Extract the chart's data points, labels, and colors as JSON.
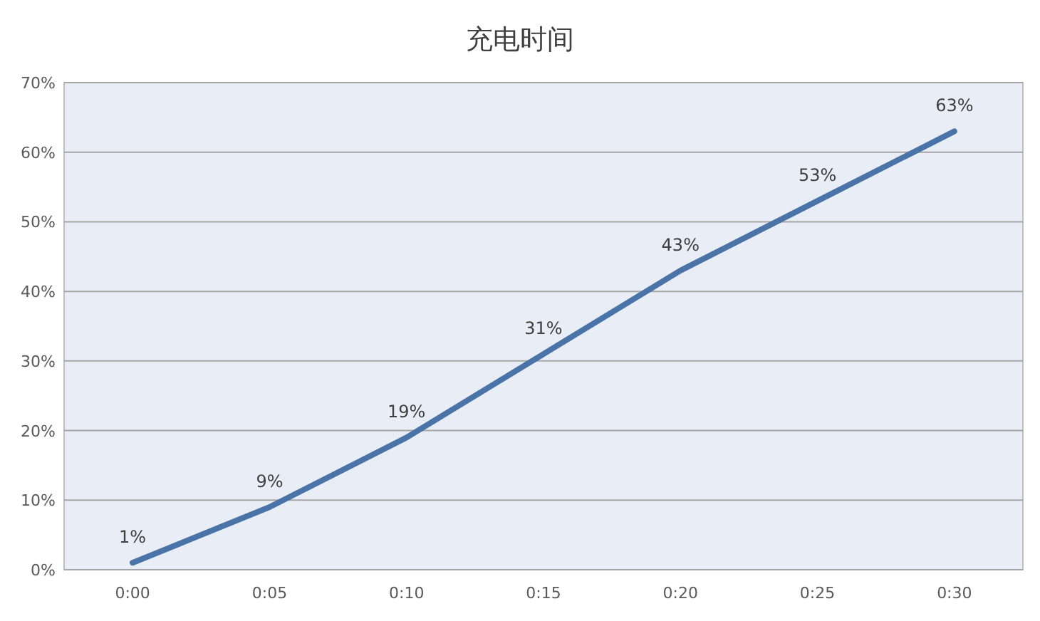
{
  "chart_data": {
    "type": "line",
    "title": "充电时间",
    "categories": [
      "0:00",
      "0:05",
      "0:10",
      "0:15",
      "0:20",
      "0:25",
      "0:30"
    ],
    "values": [
      1,
      9,
      19,
      31,
      43,
      53,
      63
    ],
    "color": "#4a74a8",
    "ylim": [
      0,
      70
    ],
    "yticks": [
      {
        "value": 0,
        "label": "0%"
      },
      {
        "value": 10,
        "label": "10%"
      },
      {
        "value": 20,
        "label": "20%"
      },
      {
        "value": 30,
        "label": "30%"
      },
      {
        "value": 40,
        "label": "40%"
      },
      {
        "value": 50,
        "label": "50%"
      },
      {
        "value": 60,
        "label": "60%"
      },
      {
        "value": 70,
        "label": "70%"
      }
    ],
    "value_labels": [
      "1%",
      "9%",
      "19%",
      "31%",
      "43%",
      "53%",
      "63%"
    ],
    "grid": "y",
    "marker": "none",
    "line_style": "solid"
  }
}
